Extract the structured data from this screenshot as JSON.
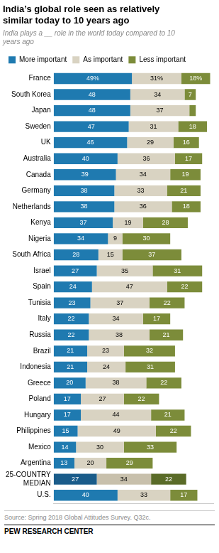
{
  "chart_data": {
    "type": "bar",
    "orientation": "horizontal",
    "stacked": true,
    "data_labels": true,
    "grid": false,
    "legend": "top",
    "tick_labels": "y",
    "title": "India’s global role seen as relatively\nsimilar today to 10 years ago",
    "subtitle": "India plays a __ role in the world today compared to 10\nyears ago",
    "annotations": [
      "Source: Spring 2018 Global Attitudes Survey. Q32c.",
      "PEW RESEARCH CENTER"
    ],
    "xlim": [
      0,
      100
    ],
    "categories": [
      "France",
      "South Korea",
      "Japan",
      "Sweden",
      "UK",
      "Australia",
      "Canada",
      "Germany",
      "Netherlands",
      "Kenya",
      "Nigeria",
      "South Africa",
      "Israel",
      "Spain",
      "Tunisia",
      "Italy",
      "Russia",
      "Brazil",
      "Indonesia",
      "Greece",
      "Poland",
      "Hungary",
      "Philippines",
      "Mexico",
      "Argentina",
      "25-COUNTRY\nMEDIAN",
      "U.S."
    ],
    "series": [
      {
        "name": "More important",
        "color": "#1F7AB0",
        "colors": [
          "#1F7AB0",
          "#1F7AB0",
          "#1F7AB0",
          "#1F7AB0",
          "#1F7AB0",
          "#1F7AB0",
          "#1F7AB0",
          "#1F7AB0",
          "#1F7AB0",
          "#1F7AB0",
          "#1F7AB0",
          "#1F7AB0",
          "#1F7AB0",
          "#1F7AB0",
          "#1F7AB0",
          "#1F7AB0",
          "#1F7AB0",
          "#1F7AB0",
          "#1F7AB0",
          "#1F7AB0",
          "#1F7AB0",
          "#1F7AB0",
          "#1F7AB0",
          "#1F7AB0",
          "#1F7AB0",
          "#1A5C8A",
          "#1F7AB0"
        ],
        "values": [
          49,
          48,
          48,
          47,
          46,
          40,
          39,
          38,
          38,
          37,
          34,
          28,
          27,
          24,
          23,
          22,
          22,
          21,
          21,
          20,
          17,
          17,
          15,
          14,
          13,
          27,
          40
        ],
        "value_labels": [
          "49%",
          "48",
          "48",
          "47",
          "46",
          "40",
          "39",
          "38",
          "38",
          "37",
          "34",
          "28",
          "27",
          "24",
          "23",
          "22",
          "22",
          "21",
          "21",
          "20",
          "17",
          "17",
          "15",
          "14",
          "13",
          "27",
          "40"
        ]
      },
      {
        "name": "As important",
        "color": "#D9D3C2",
        "colors": [
          "#D9D3C2",
          "#D9D3C2",
          "#D9D3C2",
          "#D9D3C2",
          "#D9D3C2",
          "#D9D3C2",
          "#D9D3C2",
          "#D9D3C2",
          "#D9D3C2",
          "#D9D3C2",
          "#D9D3C2",
          "#D9D3C2",
          "#D9D3C2",
          "#D9D3C2",
          "#D9D3C2",
          "#D9D3C2",
          "#D9D3C2",
          "#D9D3C2",
          "#D9D3C2",
          "#D9D3C2",
          "#D9D3C2",
          "#D9D3C2",
          "#D9D3C2",
          "#D9D3C2",
          "#D9D3C2",
          "#C8C0AC",
          "#D9D3C2"
        ],
        "values": [
          31,
          34,
          37,
          31,
          29,
          36,
          34,
          33,
          36,
          19,
          9,
          15,
          35,
          47,
          37,
          34,
          38,
          23,
          24,
          38,
          27,
          44,
          49,
          30,
          20,
          34,
          33
        ],
        "value_labels": [
          "31%",
          "34",
          "37",
          "31",
          "29",
          "36",
          "34",
          "33",
          "36",
          "19",
          "9",
          "15",
          "35",
          "47",
          "37",
          "34",
          "38",
          "23",
          "24",
          "38",
          "27",
          "44",
          "49",
          "30",
          "20",
          "34",
          "33"
        ]
      },
      {
        "name": "Less important",
        "color": "#7C8C3A",
        "colors": [
          "#7C8C3A",
          "#7C8C3A",
          "#7C8C3A",
          "#7C8C3A",
          "#7C8C3A",
          "#7C8C3A",
          "#7C8C3A",
          "#7C8C3A",
          "#7C8C3A",
          "#7C8C3A",
          "#7C8C3A",
          "#7C8C3A",
          "#7C8C3A",
          "#7C8C3A",
          "#7C8C3A",
          "#7C8C3A",
          "#7C8C3A",
          "#7C8C3A",
          "#7C8C3A",
          "#7C8C3A",
          "#7C8C3A",
          "#7C8C3A",
          "#7C8C3A",
          "#7C8C3A",
          "#7C8C3A",
          "#5A6B28",
          "#7C8C3A"
        ],
        "values": [
          18,
          7,
          4,
          18,
          16,
          17,
          19,
          21,
          18,
          28,
          30,
          37,
          31,
          22,
          22,
          17,
          21,
          32,
          31,
          22,
          22,
          21,
          22,
          33,
          29,
          22,
          17
        ],
        "value_labels": [
          "18%",
          "7",
          null,
          "18",
          "16",
          "17",
          "19",
          "21",
          "18",
          "28",
          "30",
          "37",
          "31",
          "22",
          "22",
          "17",
          "21",
          "32",
          "31",
          "22",
          "22",
          "21",
          "22",
          "33",
          "29",
          "22",
          "17"
        ]
      }
    ]
  }
}
